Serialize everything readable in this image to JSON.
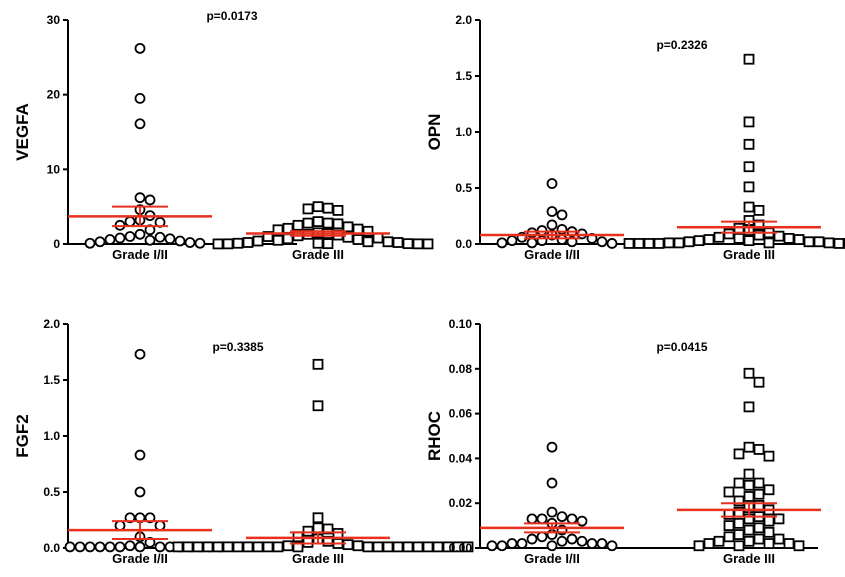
{
  "chart_data": [
    {
      "type": "scatter",
      "ylabel": "VEGFA",
      "annotation": "p=0.0173",
      "ylim": [
        0,
        30
      ],
      "yticks": [
        "0",
        "10",
        "20",
        "30"
      ],
      "categories": [
        "Grade I/II",
        "Grade III"
      ],
      "series": [
        {
          "marker": "circle",
          "values": [
            26.2,
            19.5,
            16.1,
            6.2,
            5.9,
            4.6,
            3.8,
            3.2,
            3.0,
            2.9,
            2.5,
            1.9,
            1.3,
            1.0,
            0.9,
            0.8,
            0.7,
            0.6,
            0.5,
            0.4,
            0.3,
            0.2,
            0.1,
            0.1
          ],
          "mean": 3.7,
          "error": 1.3
        },
        {
          "marker": "square",
          "values": [
            5.0,
            4.8,
            4.7,
            4.5,
            3.0,
            2.8,
            2.8,
            2.7,
            2.5,
            2.3,
            2.1,
            2.0,
            1.9,
            1.7,
            1.5,
            1.4,
            1.3,
            1.2,
            1.1,
            1.0,
            0.9,
            0.8,
            0.7,
            0.6,
            0.5,
            0.4,
            0.3,
            0.3,
            0.2,
            0.2,
            0.1,
            0.1,
            0.05,
            0.05,
            0.02,
            0.02,
            0.01,
            0.01
          ],
          "mean": 1.4,
          "error": 0.3
        }
      ],
      "mean_line_color": "#e8301e"
    },
    {
      "type": "scatter",
      "ylabel": "OPN",
      "annotation": "p=0.2326",
      "ylim": [
        0,
        2.0
      ],
      "yticks": [
        "0.0",
        "0.5",
        "1.0",
        "1.5",
        "2.0"
      ],
      "categories": [
        "Grade I/II",
        "Grade III"
      ],
      "series": [
        {
          "marker": "circle",
          "values": [
            0.54,
            0.29,
            0.26,
            0.17,
            0.13,
            0.12,
            0.11,
            0.1,
            0.09,
            0.08,
            0.06,
            0.05,
            0.04,
            0.03,
            0.03,
            0.02,
            0.02,
            0.01,
            0.01,
            0.005
          ],
          "mean": 0.08,
          "error": 0.03
        },
        {
          "marker": "square",
          "values": [
            1.65,
            1.09,
            0.89,
            0.69,
            0.51,
            0.33,
            0.3,
            0.21,
            0.17,
            0.14,
            0.12,
            0.1,
            0.09,
            0.08,
            0.07,
            0.06,
            0.05,
            0.05,
            0.04,
            0.04,
            0.03,
            0.03,
            0.02,
            0.02,
            0.02,
            0.01,
            0.01,
            0.01,
            0.01,
            0.005,
            0.005,
            0.005,
            0.005,
            0.005,
            0.005,
            0.005,
            0.005,
            0.005
          ],
          "mean": 0.15,
          "error": 0.05
        }
      ],
      "mean_line_color": "#e8301e"
    },
    {
      "type": "scatter",
      "ylabel": "FGF2",
      "annotation": "p=0.3385",
      "ylim": [
        0,
        2.0
      ],
      "yticks": [
        "0.0",
        "0.5",
        "1.0",
        "1.5",
        "2.0"
      ],
      "categories": [
        "Grade I/II",
        "Grade III"
      ],
      "series": [
        {
          "marker": "circle",
          "values": [
            1.73,
            0.83,
            0.5,
            0.27,
            0.27,
            0.27,
            0.2,
            0.2,
            0.1,
            0.05,
            0.02,
            0.01,
            0.01,
            0.01,
            0.01,
            0.01,
            0.01,
            0.01,
            0.01,
            0.01,
            0.01,
            0.01,
            0.01,
            0.01,
            0.01
          ],
          "mean": 0.16,
          "error": 0.08
        },
        {
          "marker": "square",
          "values": [
            1.64,
            1.27,
            0.27,
            0.18,
            0.17,
            0.15,
            0.13,
            0.1,
            0.08,
            0.06,
            0.05,
            0.04,
            0.03,
            0.02,
            0.02,
            0.01,
            0.01,
            0.01,
            0.01,
            0.01,
            0.01,
            0.01,
            0.01,
            0.01,
            0.01,
            0.01,
            0.01,
            0.01,
            0.01,
            0.01,
            0.01,
            0.01,
            0.01,
            0.01,
            0.01,
            0.01,
            0.01,
            0.01
          ],
          "mean": 0.09,
          "error": 0.05
        }
      ],
      "mean_line_color": "#e8301e"
    },
    {
      "type": "scatter",
      "ylabel": "RHOC",
      "annotation": "p=0.0415",
      "ylim": [
        0,
        0.1
      ],
      "yticks": [
        "0.00",
        "0.02",
        "0.04",
        "0.06",
        "0.08",
        "0.10"
      ],
      "categories": [
        "Grade I/II",
        "Grade III"
      ],
      "series": [
        {
          "marker": "circle",
          "values": [
            0.045,
            0.029,
            0.016,
            0.014,
            0.013,
            0.013,
            0.013,
            0.012,
            0.011,
            0.008,
            0.006,
            0.005,
            0.004,
            0.004,
            0.003,
            0.003,
            0.002,
            0.002,
            0.002,
            0.002,
            0.001,
            0.001,
            0.001,
            0.001
          ],
          "mean": 0.009,
          "error": 0.002
        },
        {
          "marker": "square",
          "values": [
            0.078,
            0.074,
            0.063,
            0.045,
            0.044,
            0.042,
            0.041,
            0.033,
            0.029,
            0.029,
            0.028,
            0.026,
            0.025,
            0.024,
            0.023,
            0.021,
            0.019,
            0.018,
            0.017,
            0.016,
            0.015,
            0.014,
            0.013,
            0.013,
            0.012,
            0.011,
            0.01,
            0.009,
            0.008,
            0.007,
            0.006,
            0.005,
            0.004,
            0.004,
            0.003,
            0.003,
            0.002,
            0.002,
            0.002,
            0.001,
            0.001,
            0.001
          ],
          "mean": 0.017,
          "error": 0.003
        }
      ],
      "mean_line_color": "#e8301e"
    }
  ]
}
